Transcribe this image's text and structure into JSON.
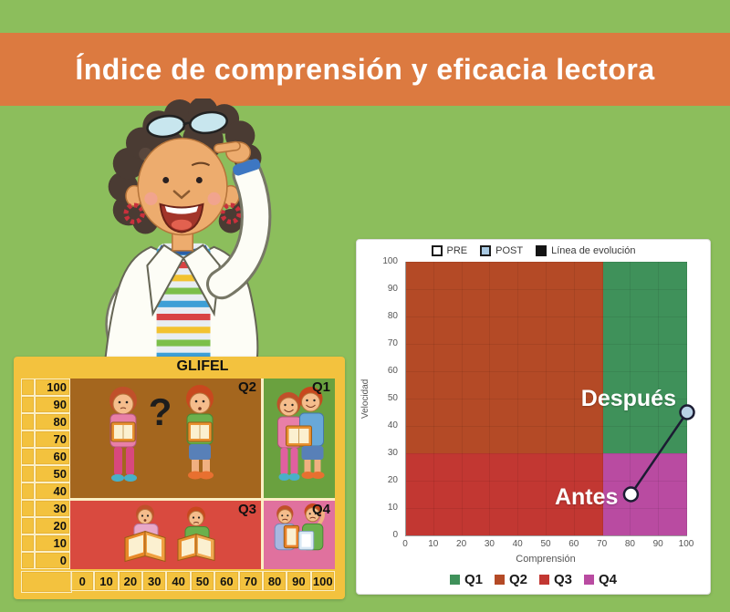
{
  "page": {
    "background": "#8CBE5C"
  },
  "banner": {
    "title": "Índice de comprensión y eficacia lectora",
    "background": "#DC7A40",
    "text_color": "#FFFFFF"
  },
  "glifel": {
    "title": "GLIFEL",
    "background": "#F3C23E",
    "y_ticks": [
      "100",
      "90",
      "80",
      "70",
      "60",
      "50",
      "40",
      "30",
      "20",
      "10",
      "0"
    ],
    "x_ticks": [
      "0",
      "10",
      "20",
      "30",
      "40",
      "50",
      "60",
      "70",
      "80",
      "90",
      "100"
    ],
    "quadrants": [
      {
        "label": "Q2",
        "color": "#A4661E",
        "pos": "top-left",
        "mark": "?"
      },
      {
        "label": "Q1",
        "color": "#6AA13F",
        "pos": "top-right"
      },
      {
        "label": "Q3",
        "color": "#D94A3F",
        "pos": "bottom-left"
      },
      {
        "label": "Q4",
        "color": "#E0719E",
        "pos": "bottom-right"
      }
    ]
  },
  "chart_data": {
    "type": "scatter",
    "title": "",
    "xlabel": "Comprensión",
    "ylabel": "Velocidad",
    "xlim": [
      0,
      100
    ],
    "ylim": [
      0,
      100
    ],
    "x_ticks": [
      0,
      10,
      20,
      30,
      40,
      50,
      60,
      70,
      80,
      90,
      100
    ],
    "y_ticks": [
      0,
      10,
      20,
      30,
      40,
      50,
      60,
      70,
      80,
      90,
      100
    ],
    "grid": true,
    "quadrant_split": {
      "x": 70,
      "y": 30
    },
    "quadrants": [
      {
        "name": "Q2",
        "color": "#B44A26",
        "x": [
          0,
          70
        ],
        "y": [
          30,
          100
        ]
      },
      {
        "name": "Q1",
        "color": "#3F915A",
        "x": [
          70,
          100
        ],
        "y": [
          30,
          100
        ]
      },
      {
        "name": "Q3",
        "color": "#C23732",
        "x": [
          0,
          70
        ],
        "y": [
          0,
          30
        ]
      },
      {
        "name": "Q4",
        "color": "#B94BA1",
        "x": [
          70,
          100
        ],
        "y": [
          0,
          30
        ]
      }
    ],
    "series": [
      {
        "name": "PRE",
        "label": "Antes",
        "x": 80,
        "y": 15,
        "marker_color": "#FFFFFF",
        "label_dx": -14,
        "label_dy": 3
      },
      {
        "name": "POST",
        "label": "Después",
        "x": 100,
        "y": 45,
        "marker_color": "#B9D2E6",
        "label_dx": -12,
        "label_dy": -15
      }
    ],
    "evolution_line": {
      "label": "Línea de evolución",
      "color": "#1C1C33"
    },
    "legend_top": [
      {
        "label": "PRE",
        "swatch": "#FFFFFF"
      },
      {
        "label": "POST",
        "swatch": "#A9C9E2"
      },
      {
        "label": "Línea de evolución",
        "swatch": "#141414"
      }
    ],
    "legend_bottom": [
      {
        "label": "Q1",
        "color": "#3F915A"
      },
      {
        "label": "Q2",
        "color": "#B44A26"
      },
      {
        "label": "Q3",
        "color": "#C23732"
      },
      {
        "label": "Q4",
        "color": "#B94BA1"
      }
    ]
  }
}
